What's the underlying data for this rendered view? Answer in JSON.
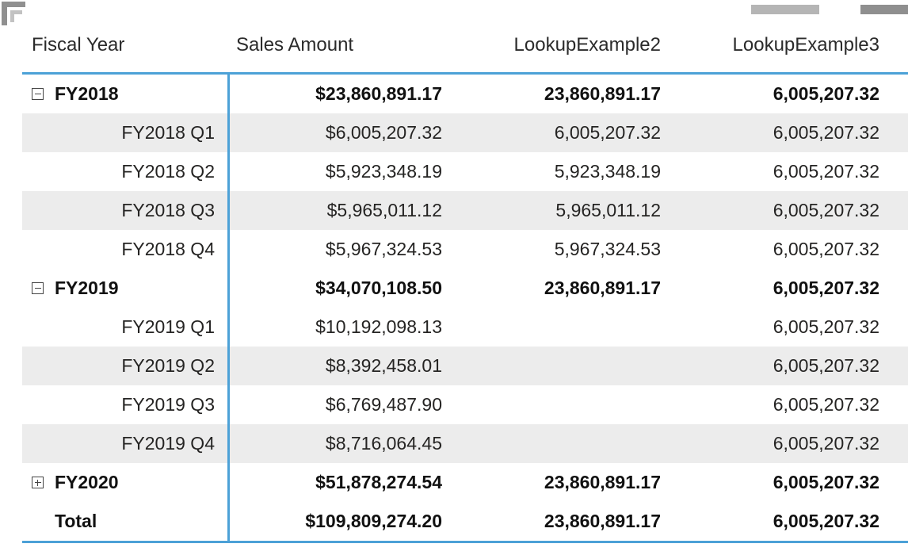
{
  "table": {
    "colors": {
      "accent_line": "#4CA1D7",
      "band": "#ececec",
      "text": "#252423",
      "handle_gray": "#909090"
    },
    "headers": [
      {
        "label": "Fiscal Year"
      },
      {
        "label": "Sales Amount"
      },
      {
        "label": "LookupExample2"
      },
      {
        "label": "LookupExample3"
      }
    ],
    "rows": [
      {
        "label": "FY2018",
        "level": "year",
        "icon": "minus",
        "bold": true,
        "shaded": false,
        "sales": "$23,860,891.17",
        "lookup2": "23,860,891.17",
        "lookup3": "6,005,207.32"
      },
      {
        "label": "FY2018 Q1",
        "level": "quarter",
        "icon": "none",
        "bold": false,
        "shaded": true,
        "sales": "$6,005,207.32",
        "lookup2": "6,005,207.32",
        "lookup3": "6,005,207.32"
      },
      {
        "label": "FY2018 Q2",
        "level": "quarter",
        "icon": "none",
        "bold": false,
        "shaded": false,
        "sales": "$5,923,348.19",
        "lookup2": "5,923,348.19",
        "lookup3": "6,005,207.32"
      },
      {
        "label": "FY2018 Q3",
        "level": "quarter",
        "icon": "none",
        "bold": false,
        "shaded": true,
        "sales": "$5,965,011.12",
        "lookup2": "5,965,011.12",
        "lookup3": "6,005,207.32"
      },
      {
        "label": "FY2018 Q4",
        "level": "quarter",
        "icon": "none",
        "bold": false,
        "shaded": false,
        "sales": "$5,967,324.53",
        "lookup2": "5,967,324.53",
        "lookup3": "6,005,207.32"
      },
      {
        "label": "FY2019",
        "level": "year",
        "icon": "minus",
        "bold": true,
        "shaded": false,
        "sales": "$34,070,108.50",
        "lookup2": "23,860,891.17",
        "lookup3": "6,005,207.32"
      },
      {
        "label": "FY2019 Q1",
        "level": "quarter",
        "icon": "none",
        "bold": false,
        "shaded": false,
        "sales": "$10,192,098.13",
        "lookup2": "",
        "lookup3": "6,005,207.32"
      },
      {
        "label": "FY2019 Q2",
        "level": "quarter",
        "icon": "none",
        "bold": false,
        "shaded": true,
        "sales": "$8,392,458.01",
        "lookup2": "",
        "lookup3": "6,005,207.32"
      },
      {
        "label": "FY2019 Q3",
        "level": "quarter",
        "icon": "none",
        "bold": false,
        "shaded": false,
        "sales": "$6,769,487.90",
        "lookup2": "",
        "lookup3": "6,005,207.32"
      },
      {
        "label": "FY2019 Q4",
        "level": "quarter",
        "icon": "none",
        "bold": false,
        "shaded": true,
        "sales": "$8,716,064.45",
        "lookup2": "",
        "lookup3": "6,005,207.32"
      },
      {
        "label": "FY2020",
        "level": "year",
        "icon": "plus",
        "bold": true,
        "shaded": false,
        "sales": "$51,878,274.54",
        "lookup2": "23,860,891.17",
        "lookup3": "6,005,207.32"
      },
      {
        "label": "Total",
        "level": "total",
        "icon": "none",
        "bold": true,
        "shaded": false,
        "sales": "$109,809,274.20",
        "lookup2": "23,860,891.17",
        "lookup3": "6,005,207.32"
      }
    ]
  }
}
